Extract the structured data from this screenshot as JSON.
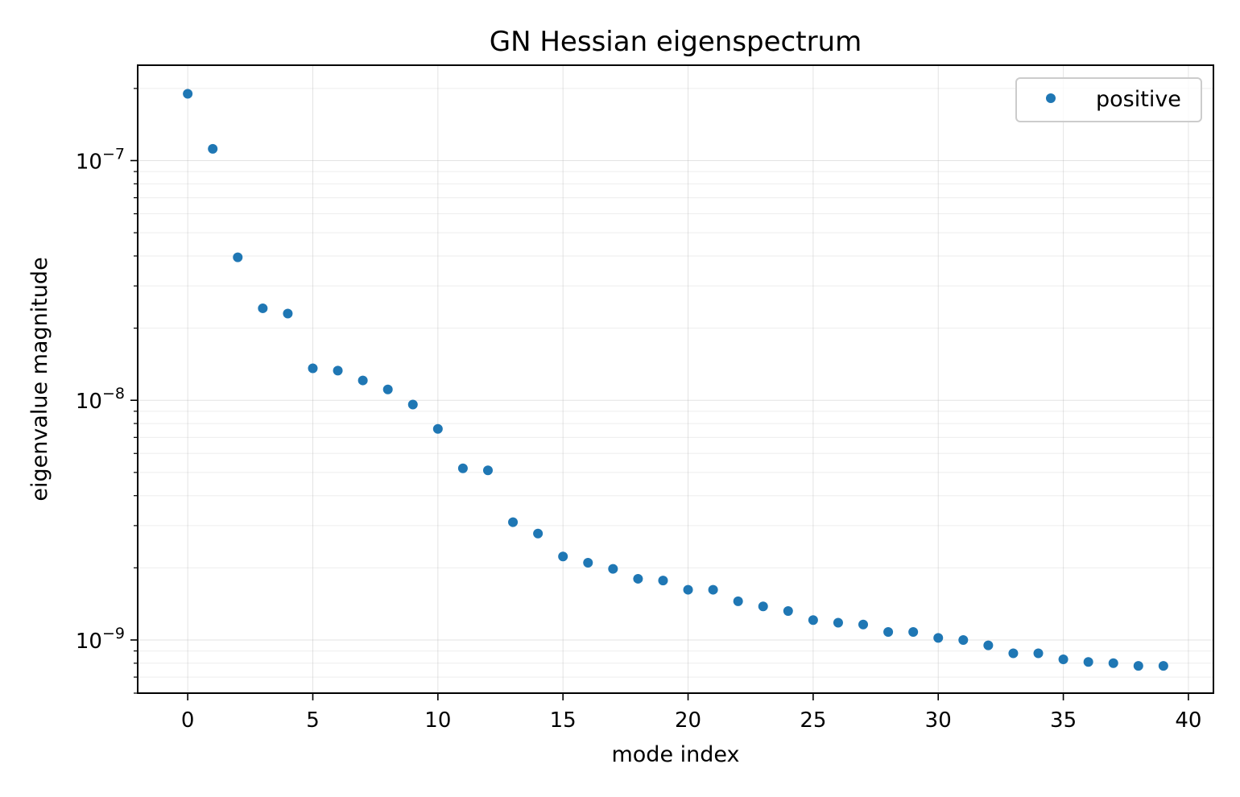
{
  "chart_data": {
    "type": "scatter",
    "title": "GN Hessian eigenspectrum",
    "xlabel": "mode index",
    "ylabel": "eigenvalue magnitude",
    "xlim": [
      -2,
      41
    ],
    "ylim": [
      6e-10,
      2.5e-07
    ],
    "yscale": "log",
    "grid": true,
    "legend_position": "top-right",
    "x_ticks": [
      0,
      5,
      10,
      15,
      20,
      25,
      30,
      35,
      40
    ],
    "x_tick_labels": [
      "0",
      "5",
      "10",
      "15",
      "20",
      "25",
      "30",
      "35",
      "40"
    ],
    "y_ticks": [
      1e-09,
      1e-08,
      1e-07
    ],
    "y_tick_labels": [
      {
        "base": "10",
        "exp": "−9"
      },
      {
        "base": "10",
        "exp": "−8"
      },
      {
        "base": "10",
        "exp": "−7"
      }
    ],
    "series": [
      {
        "name": "positive",
        "color": "#1f77b4",
        "x": [
          0,
          1,
          2,
          3,
          4,
          5,
          6,
          7,
          8,
          9,
          10,
          11,
          12,
          13,
          14,
          15,
          16,
          17,
          18,
          19,
          20,
          21,
          22,
          23,
          24,
          25,
          26,
          27,
          28,
          29,
          30,
          31,
          32,
          33,
          34,
          35,
          36,
          37,
          38,
          39
        ],
        "y": [
          1.9e-07,
          1.12e-07,
          3.95e-08,
          2.42e-08,
          2.3e-08,
          1.36e-08,
          1.33e-08,
          1.21e-08,
          1.11e-08,
          9.6e-09,
          7.6e-09,
          5.2e-09,
          5.1e-09,
          3.1e-09,
          2.78e-09,
          2.23e-09,
          2.1e-09,
          1.98e-09,
          1.8e-09,
          1.77e-09,
          1.62e-09,
          1.62e-09,
          1.45e-09,
          1.38e-09,
          1.32e-09,
          1.21e-09,
          1.18e-09,
          1.16e-09,
          1.08e-09,
          1.08e-09,
          1.02e-09,
          1e-09,
          9.5e-10,
          8.8e-10,
          8.8e-10,
          8.3e-10,
          8.1e-10,
          8e-10,
          7.8e-10,
          7.8e-10
        ]
      }
    ]
  }
}
